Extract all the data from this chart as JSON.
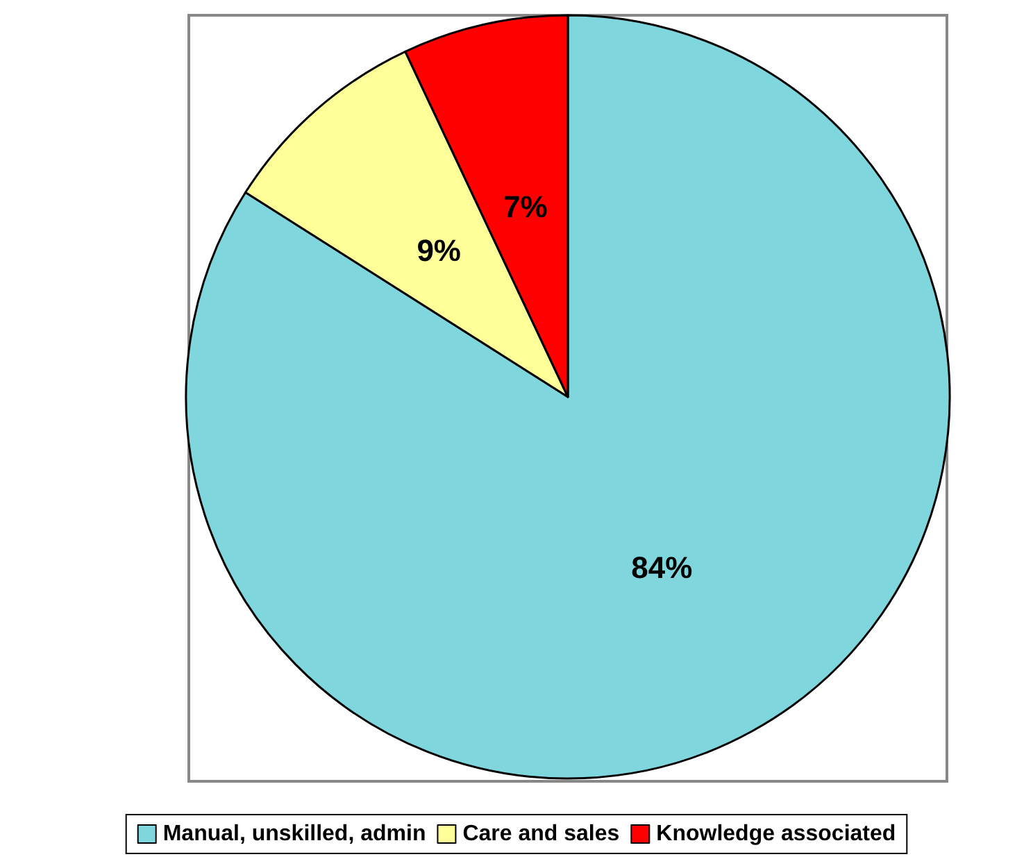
{
  "chart_data": {
    "type": "pie",
    "categories": [
      "Manual, unskilled, admin",
      "Care and sales",
      "Knowledge associated"
    ],
    "values": [
      84,
      9,
      7
    ],
    "value_labels": [
      "84%",
      "9%",
      "7%"
    ],
    "colors": [
      "#7fd6dc",
      "#ffff99",
      "#ff0000"
    ],
    "legend": "bottom"
  }
}
